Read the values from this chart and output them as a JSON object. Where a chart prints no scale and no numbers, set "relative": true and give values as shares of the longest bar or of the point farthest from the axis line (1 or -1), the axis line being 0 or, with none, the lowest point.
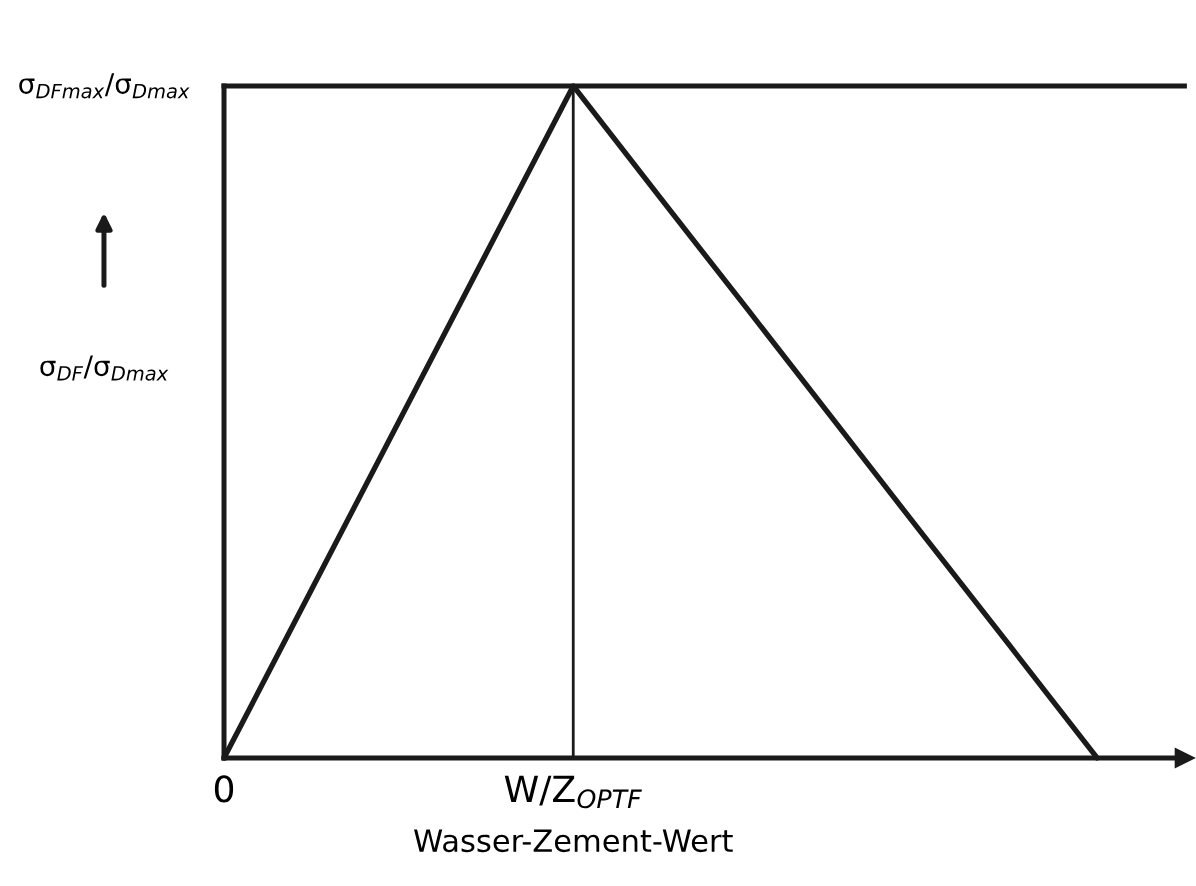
{
  "chart_data": {
    "type": "line",
    "relative": true,
    "categories": [
      "0",
      null,
      null,
      null,
      "W/Z$_{OPTF}$",
      null,
      null,
      null,
      null,
      null,
      null,
      null
    ],
    "values": [
      0,
      0.25,
      0.5,
      0.75,
      1,
      0.833,
      0.667,
      0.5,
      0.333,
      0.167,
      0,
      null
    ],
    "color": "#1a1a1a",
    "xlabel": "Wasser-Zement-Wert",
    "ylabel": "σ$_{DF}$/σ$_{Dmax}$",
    "ref_lines": [
      {
        "axis": "y",
        "value": 1,
        "label": "σ$_{DFmax}$/σ$_{Dmax}$",
        "color": "#1a1a1a"
      },
      {
        "axis": "x",
        "value": "W/Z$_{OPTF}$",
        "color": "#1a1a1a"
      }
    ],
    "marker": "none",
    "line_style": "solid"
  }
}
